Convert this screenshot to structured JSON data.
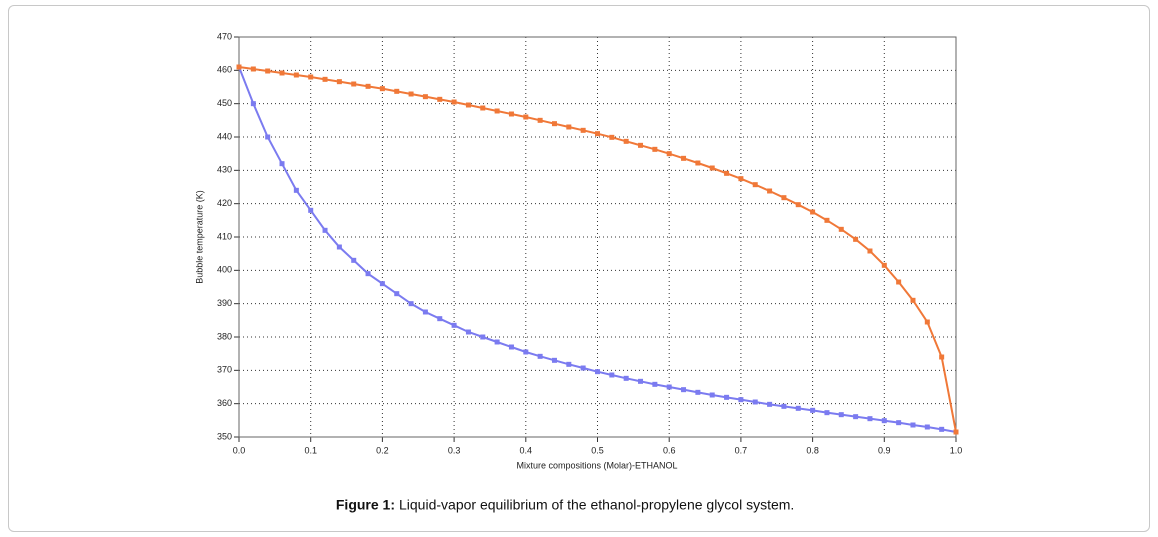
{
  "chart_data": {
    "type": "line",
    "caption_label": "Figure 1:",
    "caption": "Liquid-vapor equilibrium of the ethanol-propylene glycol system.",
    "xlabel": "Mixture compositions (Molar)-ETHANOL",
    "ylabel": "Bubble temperature (K)",
    "x": [
      0,
      0.02,
      0.04,
      0.06,
      0.08,
      0.1,
      0.12,
      0.14,
      0.16,
      0.18,
      0.2,
      0.22,
      0.24,
      0.26,
      0.28,
      0.3,
      0.32,
      0.34,
      0.36,
      0.38,
      0.4,
      0.42,
      0.44,
      0.46,
      0.48,
      0.5,
      0.52,
      0.54,
      0.56,
      0.58,
      0.6,
      0.62,
      0.64,
      0.66,
      0.68,
      0.7,
      0.72,
      0.74,
      0.76,
      0.78,
      0.8,
      0.82,
      0.84,
      0.86,
      0.88,
      0.9,
      0.92,
      0.94,
      0.96,
      0.98,
      1.0
    ],
    "series": [
      {
        "color": "#7b7bf0",
        "values": [
          461,
          450,
          440,
          432,
          424,
          418,
          412,
          407,
          403,
          399,
          396,
          393,
          390,
          387.5,
          385.5,
          383.5,
          381.5,
          380,
          378.5,
          377,
          375.5,
          374.2,
          373,
          371.8,
          370.7,
          369.6,
          368.6,
          367.6,
          366.7,
          365.8,
          365,
          364.2,
          363.4,
          362.6,
          361.9,
          361.2,
          360.5,
          359.8,
          359.2,
          358.6,
          358,
          357.3,
          356.7,
          356.1,
          355.5,
          354.9,
          354.3,
          353.6,
          353,
          352.3,
          351.5
        ]
      },
      {
        "color": "#f07838",
        "values": [
          461,
          460.4,
          459.8,
          459.2,
          458.6,
          458,
          457.3,
          456.6,
          455.9,
          455.2,
          454.5,
          453.7,
          452.9,
          452.1,
          451.3,
          450.5,
          449.6,
          448.7,
          447.8,
          446.9,
          446,
          445,
          444,
          443,
          442,
          441,
          439.9,
          438.7,
          437.5,
          436.3,
          435,
          433.6,
          432.2,
          430.7,
          429.1,
          427.5,
          425.7,
          423.8,
          421.8,
          419.7,
          417.5,
          415,
          412.3,
          409.3,
          405.8,
          401.5,
          396.5,
          391,
          384.5,
          374,
          351.5
        ]
      }
    ],
    "xlim": [
      0,
      1
    ],
    "xticks": [
      {
        "value": 0,
        "label": "0.0"
      },
      0.1,
      0.2,
      0.3,
      0.4,
      0.5,
      0.6,
      0.7,
      0.8,
      0.9,
      {
        "value": 1,
        "label": "1.0"
      }
    ],
    "ylim": [
      350,
      470
    ],
    "yticks": [
      350,
      360,
      370,
      380,
      390,
      400,
      410,
      420,
      430,
      440,
      450,
      460,
      470
    ],
    "grid": true
  }
}
